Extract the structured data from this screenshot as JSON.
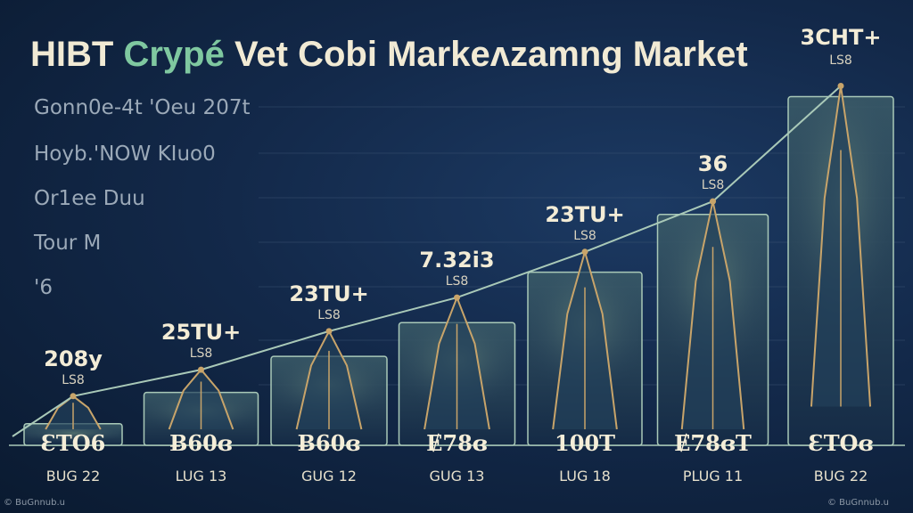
{
  "title": {
    "part1": "HIBT ",
    "accent": "Crypé",
    "part2": " Vet Cobi Markeʌzamng Market"
  },
  "side_labels": [
    "Gonn0e-4t 'Oeu 207t",
    "Hoyb.'NOW KIuo0",
    "Or1ee Duu",
    "Tour M",
    "'6"
  ],
  "credits": {
    "left": "© BuGnnub.u",
    "right": "© BuGnnub.u"
  },
  "colors": {
    "bar_fill": "#1c3554",
    "bar_glow": "#3a5a66",
    "line": "#a9c9b8",
    "peak": "#c8a46a",
    "text": "#f3ecd6"
  },
  "chart_data": {
    "type": "bar",
    "title": "HIBT Crypé Vet Cobi Markeʌzamng Market",
    "categories": [
      "BUG 22",
      "LUG 13",
      "GUG 12",
      "GUG 13",
      "LUG 18",
      "PLUG 11",
      "BUG 22"
    ],
    "value_labels": [
      "208y",
      "25TU+",
      "23TU+",
      "7.32i3",
      "23TU+",
      "36",
      "3CHT+"
    ],
    "unit_labels": [
      "LS8",
      "LS8",
      "LS8",
      "LS8",
      "LS8",
      "LS8",
      "LS8"
    ],
    "inner_labels": [
      "ƐTO6",
      "Ƀ60ɞ",
      "Ƀ60ɞ",
      "Ɇ78ɞ",
      "100T",
      "Ɇ78ɞT",
      "ƐTOɞ"
    ],
    "values": [
      0.9,
      2.2,
      3.7,
      5.1,
      7.2,
      9.6,
      14.5
    ],
    "line_values": [
      1.6,
      2.7,
      4.3,
      5.7,
      7.6,
      9.7,
      14.5
    ],
    "ylim": [
      0,
      15
    ],
    "grid": true,
    "legend": "none"
  }
}
